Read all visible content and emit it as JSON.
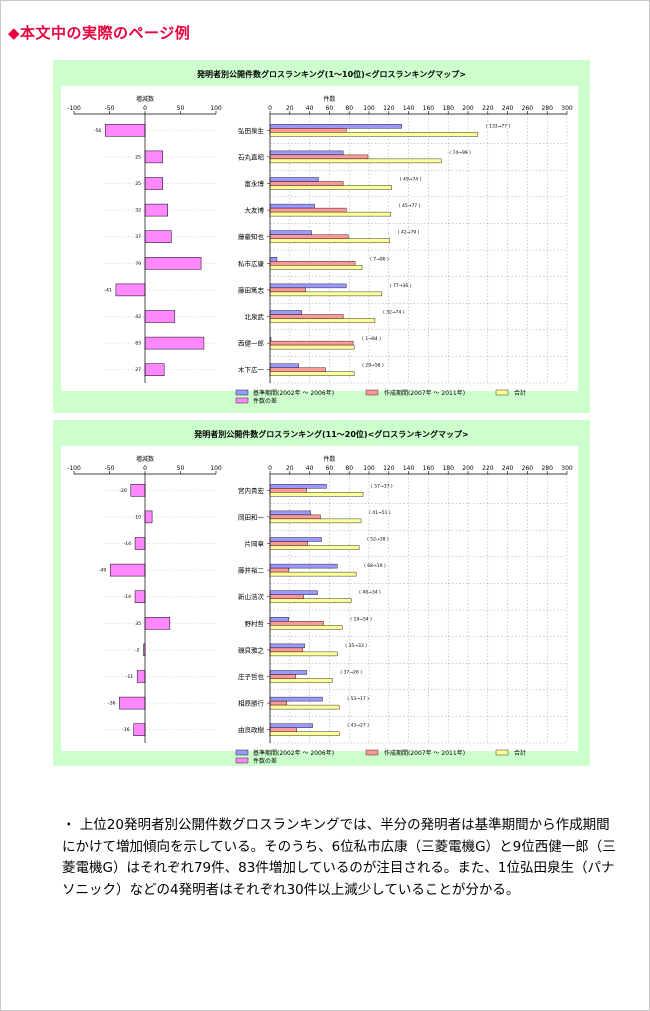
{
  "heading": "◆本文中の実際のページ例",
  "colors": {
    "base": "#9999ff",
    "made": "#ff9999",
    "total": "#ffff99",
    "diff": "#ff88ff",
    "panel": "#ccffcc",
    "heading": "#e8003c"
  },
  "legend": {
    "base": "基準期間(2002年 ～ 2006年)",
    "made": "作成期間(2007年 ～ 2011年)",
    "total": "合計",
    "diff": "件数の差"
  },
  "body": "・ 上位20発明者別公開件数グロスランキングでは、半分の発明者は基準期間から作成期間にかけて増加傾向を示している。そのうち、6位私市広康（三菱電機G）と9位西健一郎（三菱電機G）はそれぞれ79件、83件増加しているのが注目される。また、1位弘田泉生（パナソニック）などの4発明者はそれぞれ30件以上減少していることが分かる。",
  "chart_data": [
    {
      "type": "bar",
      "title": "発明者別公開件数グロスランキング(1～10位)<グロスランキングマップ>",
      "diff_axis_label": "増減数",
      "count_axis_label": "件数",
      "diff_ticks": [
        "-100",
        "-50",
        "0",
        "50",
        "100"
      ],
      "count_ticks": [
        "0",
        "20",
        "40",
        "60",
        "80",
        "100",
        "120",
        "140",
        "160",
        "180",
        "200",
        "220",
        "240",
        "260",
        "280",
        "300"
      ],
      "xlim_diff": [
        -100,
        100
      ],
      "xlim_count": [
        0,
        300
      ],
      "rows": [
        {
          "name": "弘田泉生",
          "base": 133,
          "made": 77,
          "diff": -56,
          "label": "( 133→77 )",
          "diff_label": "-56"
        },
        {
          "name": "石丸直昭",
          "base": 74,
          "made": 99,
          "diff": 25,
          "label": "( 74→99 )",
          "diff_label": "25"
        },
        {
          "name": "富永博",
          "base": 49,
          "made": 74,
          "diff": 25,
          "label": "( 49→74 )",
          "diff_label": "25"
        },
        {
          "name": "大友博",
          "base": 45,
          "made": 77,
          "diff": 32,
          "label": "( 45→77 )",
          "diff_label": "32"
        },
        {
          "name": "藤豪知也",
          "base": 42,
          "made": 79,
          "diff": 37,
          "label": "( 42→79 )",
          "diff_label": "37"
        },
        {
          "name": "私市広康",
          "base": 7,
          "made": 86,
          "diff": 79,
          "label": "( 7→86 )",
          "diff_label": "79"
        },
        {
          "name": "藤田篤志",
          "base": 77,
          "made": 36,
          "diff": -41,
          "label": "( 77→36 )",
          "diff_label": "-41"
        },
        {
          "name": "北泉武",
          "base": 32,
          "made": 74,
          "diff": 42,
          "label": "( 32→74 )",
          "diff_label": "42"
        },
        {
          "name": "西健一郎",
          "base": 1,
          "made": 84,
          "diff": 83,
          "label": "( 1→84 )",
          "diff_label": "83"
        },
        {
          "name": "木下広一",
          "base": 29,
          "made": 56,
          "diff": 27,
          "label": "( 29→56 )",
          "diff_label": "27"
        }
      ]
    },
    {
      "type": "bar",
      "title": "発明者別公開件数グロスランキング(11～20位)<グロスランキングマップ>",
      "diff_axis_label": "増減数",
      "count_axis_label": "件数",
      "diff_ticks": [
        "-100",
        "-50",
        "0",
        "50",
        "100"
      ],
      "count_ticks": [
        "0",
        "20",
        "40",
        "60",
        "80",
        "100",
        "120",
        "140",
        "160",
        "180",
        "200",
        "220",
        "240",
        "260",
        "280",
        "300"
      ],
      "xlim_diff": [
        -100,
        100
      ],
      "xlim_count": [
        0,
        300
      ],
      "rows": [
        {
          "name": "宮内貴宏",
          "base": 57,
          "made": 37,
          "diff": -20,
          "label": "( 57→37 )",
          "diff_label": "-20"
        },
        {
          "name": "岡田和一",
          "base": 41,
          "made": 51,
          "diff": 10,
          "label": "( 41→51 )",
          "diff_label": "10"
        },
        {
          "name": "片岡章",
          "base": 52,
          "made": 38,
          "diff": -14,
          "label": "( 52→38 )",
          "diff_label": "-14"
        },
        {
          "name": "藤井裕二",
          "base": 68,
          "made": 19,
          "diff": -49,
          "label": "( 68→19 )",
          "diff_label": "-49"
        },
        {
          "name": "新山浩次",
          "base": 48,
          "made": 34,
          "diff": -14,
          "label": "( 48→34 )",
          "diff_label": "-14"
        },
        {
          "name": "野村哲",
          "base": 19,
          "made": 54,
          "diff": 35,
          "label": "( 19→54 )",
          "diff_label": "35"
        },
        {
          "name": "磯貝雅之",
          "base": 35,
          "made": 33,
          "diff": -2,
          "label": "( 35→33 )",
          "diff_label": "-2"
        },
        {
          "name": "庄子哲也",
          "base": 37,
          "made": 26,
          "diff": -11,
          "label": "( 37→26 )",
          "diff_label": "-11"
        },
        {
          "name": "相原勝行",
          "base": 53,
          "made": 17,
          "diff": -36,
          "label": "( 53→17 )",
          "diff_label": "-36"
        },
        {
          "name": "由良政樹",
          "base": 43,
          "made": 27,
          "diff": -16,
          "label": "( 43→27 )",
          "diff_label": "-16"
        }
      ]
    }
  ]
}
